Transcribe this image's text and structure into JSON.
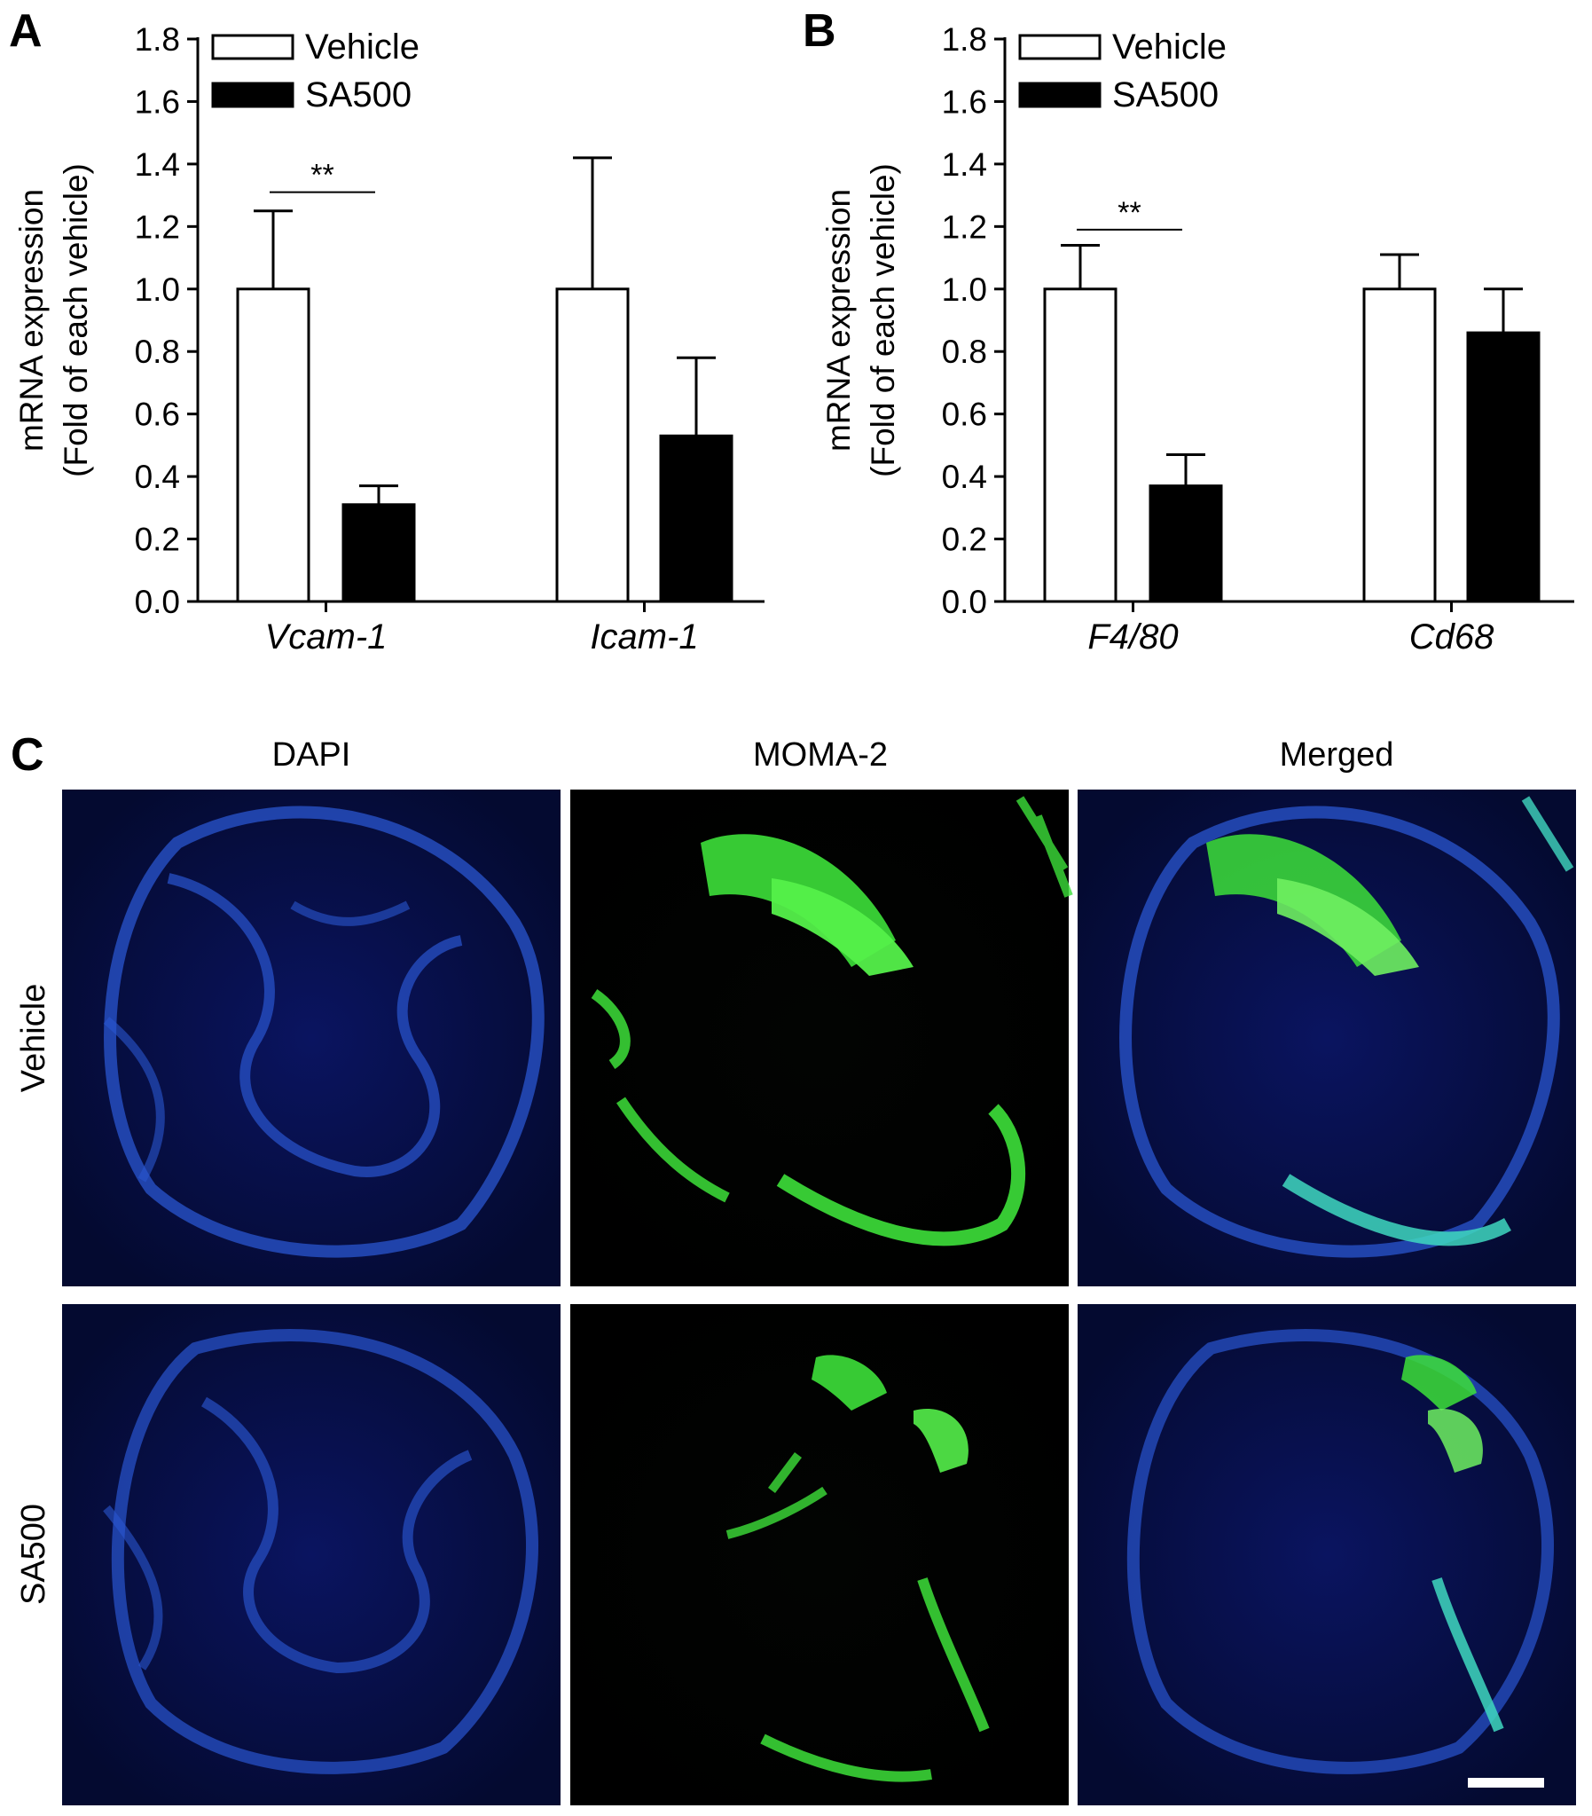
{
  "chart_data": [
    {
      "type": "bar",
      "panel_label": "A",
      "ylabel_line1": "mRNA expression",
      "ylabel_line2": "(Fold of each vehicle)",
      "ylim": [
        0,
        1.8
      ],
      "yticks": [
        "0.0",
        "0.2",
        "0.4",
        "0.6",
        "0.8",
        "1.0",
        "1.2",
        "1.4",
        "1.6",
        "1.8"
      ],
      "categories": [
        "Vcam-1",
        "Icam-1"
      ],
      "series": [
        {
          "name": "Vehicle",
          "color": "#ffffff",
          "values": [
            1.0,
            1.0
          ],
          "errors": [
            0.25,
            0.42
          ]
        },
        {
          "name": "SA500",
          "color": "#000000",
          "values": [
            0.31,
            0.53
          ],
          "errors": [
            0.06,
            0.25
          ]
        }
      ],
      "legend_position": "top-left",
      "annotations": [
        {
          "text": "**",
          "category": "Vcam-1",
          "y": 1.31
        }
      ]
    },
    {
      "type": "bar",
      "panel_label": "B",
      "ylabel_line1": "mRNA expression",
      "ylabel_line2": "(Fold of each vehicle)",
      "ylim": [
        0,
        1.8
      ],
      "yticks": [
        "0.0",
        "0.2",
        "0.4",
        "0.6",
        "0.8",
        "1.0",
        "1.2",
        "1.4",
        "1.6",
        "1.8"
      ],
      "categories": [
        "F4/80",
        "Cd68"
      ],
      "series": [
        {
          "name": "Vehicle",
          "color": "#ffffff",
          "values": [
            1.0,
            1.0
          ],
          "errors": [
            0.14,
            0.11
          ]
        },
        {
          "name": "SA500",
          "color": "#000000",
          "values": [
            0.37,
            0.86
          ],
          "errors": [
            0.1,
            0.14
          ]
        }
      ],
      "legend_position": "top-left",
      "annotations": [
        {
          "text": "**",
          "category": "F4/80",
          "y": 1.19
        }
      ]
    }
  ],
  "panel_c": {
    "panel_label": "C",
    "columns": [
      "DAPI",
      "MOMA-2",
      "Merged"
    ],
    "rows": [
      "Vehicle",
      "SA500"
    ],
    "channel_colors": {
      "dapi": "#1a3fb0",
      "moma": "#3de03a",
      "background": "#020418"
    }
  }
}
